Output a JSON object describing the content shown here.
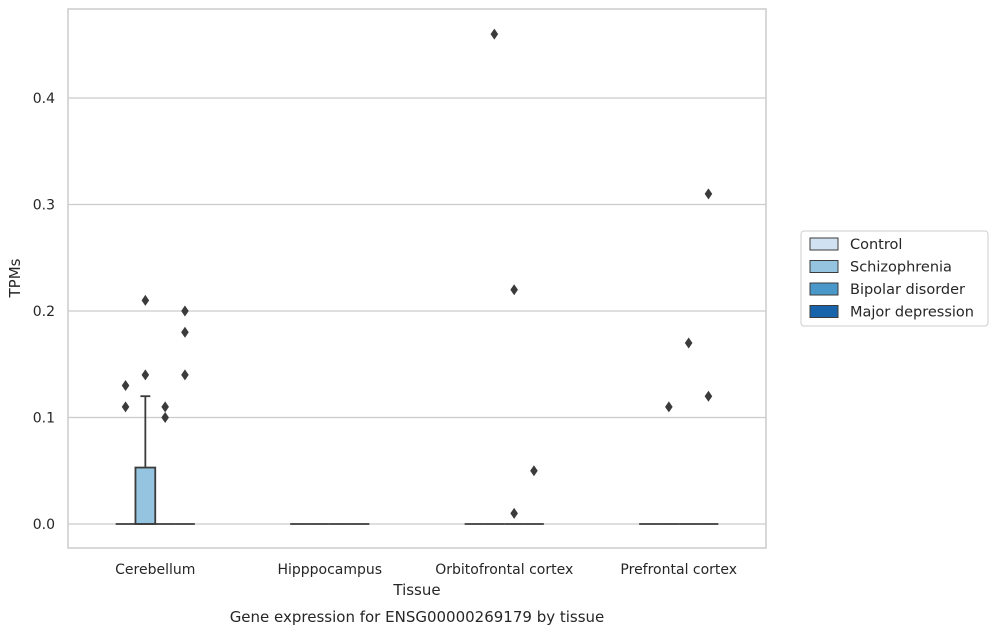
{
  "caption": "Gene expression for ENSG00000269179 by tissue",
  "chart_data": {
    "type": "box",
    "xlabel": "Tissue",
    "ylabel": "TPMs",
    "categories": [
      "Cerebellum",
      "Hipppocampus",
      "Orbitofrontal cortex",
      "Prefrontal cortex"
    ],
    "ylim": [
      -0.022,
      0.485
    ],
    "yticks": [
      0.0,
      0.1,
      0.2,
      0.3,
      0.4
    ],
    "ytick_labels": [
      "0.0",
      "0.1",
      "0.2",
      "0.3",
      "0.4"
    ],
    "grid": "horizontal",
    "legend_position": "right",
    "series": [
      {
        "name": "Control",
        "color": "#d0e1f2",
        "boxes": [
          {
            "q1": 0,
            "median": 0,
            "q3": 0,
            "whisker_low": 0,
            "whisker_high": 0,
            "outliers": [
              0.13,
              0.11
            ]
          },
          {
            "q1": 0,
            "median": 0,
            "q3": 0,
            "whisker_low": 0,
            "whisker_high": 0,
            "outliers": []
          },
          {
            "q1": 0,
            "median": 0,
            "q3": 0,
            "whisker_low": 0,
            "whisker_high": 0,
            "outliers": []
          },
          {
            "q1": 0,
            "median": 0,
            "q3": 0,
            "whisker_low": 0,
            "whisker_high": 0,
            "outliers": []
          }
        ]
      },
      {
        "name": "Schizophrenia",
        "color": "#94c4df",
        "boxes": [
          {
            "q1": 0,
            "median": 0,
            "q3": 0.053,
            "whisker_low": 0,
            "whisker_high": 0.12,
            "outliers": [
              0.21,
              0.14
            ]
          },
          {
            "q1": 0,
            "median": 0,
            "q3": 0,
            "whisker_low": 0,
            "whisker_high": 0,
            "outliers": []
          },
          {
            "q1": 0,
            "median": 0,
            "q3": 0,
            "whisker_low": 0,
            "whisker_high": 0,
            "outliers": [
              0.46
            ]
          },
          {
            "q1": 0,
            "median": 0,
            "q3": 0,
            "whisker_low": 0,
            "whisker_high": 0,
            "outliers": [
              0.11
            ]
          }
        ]
      },
      {
        "name": "Bipolar disorder",
        "color": "#4a98c9",
        "boxes": [
          {
            "q1": 0,
            "median": 0,
            "q3": 0,
            "whisker_low": 0,
            "whisker_high": 0,
            "outliers": [
              0.11,
              0.1
            ]
          },
          {
            "q1": 0,
            "median": 0,
            "q3": 0,
            "whisker_low": 0,
            "whisker_high": 0,
            "outliers": []
          },
          {
            "q1": 0,
            "median": 0,
            "q3": 0,
            "whisker_low": 0,
            "whisker_high": 0,
            "outliers": [
              0.22,
              0.01
            ]
          },
          {
            "q1": 0,
            "median": 0,
            "q3": 0,
            "whisker_low": 0,
            "whisker_high": 0,
            "outliers": [
              0.17
            ]
          }
        ]
      },
      {
        "name": "Major depression",
        "color": "#1764ab",
        "boxes": [
          {
            "q1": 0,
            "median": 0,
            "q3": 0,
            "whisker_low": 0,
            "whisker_high": 0,
            "outliers": [
              0.2,
              0.18,
              0.14
            ]
          },
          {
            "q1": 0,
            "median": 0,
            "q3": 0,
            "whisker_low": 0,
            "whisker_high": 0,
            "outliers": []
          },
          {
            "q1": 0,
            "median": 0,
            "q3": 0,
            "whisker_low": 0,
            "whisker_high": 0,
            "outliers": [
              0.05
            ]
          },
          {
            "q1": 0,
            "median": 0,
            "q3": 0,
            "whisker_low": 0,
            "whisker_high": 0,
            "outliers": [
              0.31,
              0.12
            ]
          }
        ]
      }
    ]
  }
}
